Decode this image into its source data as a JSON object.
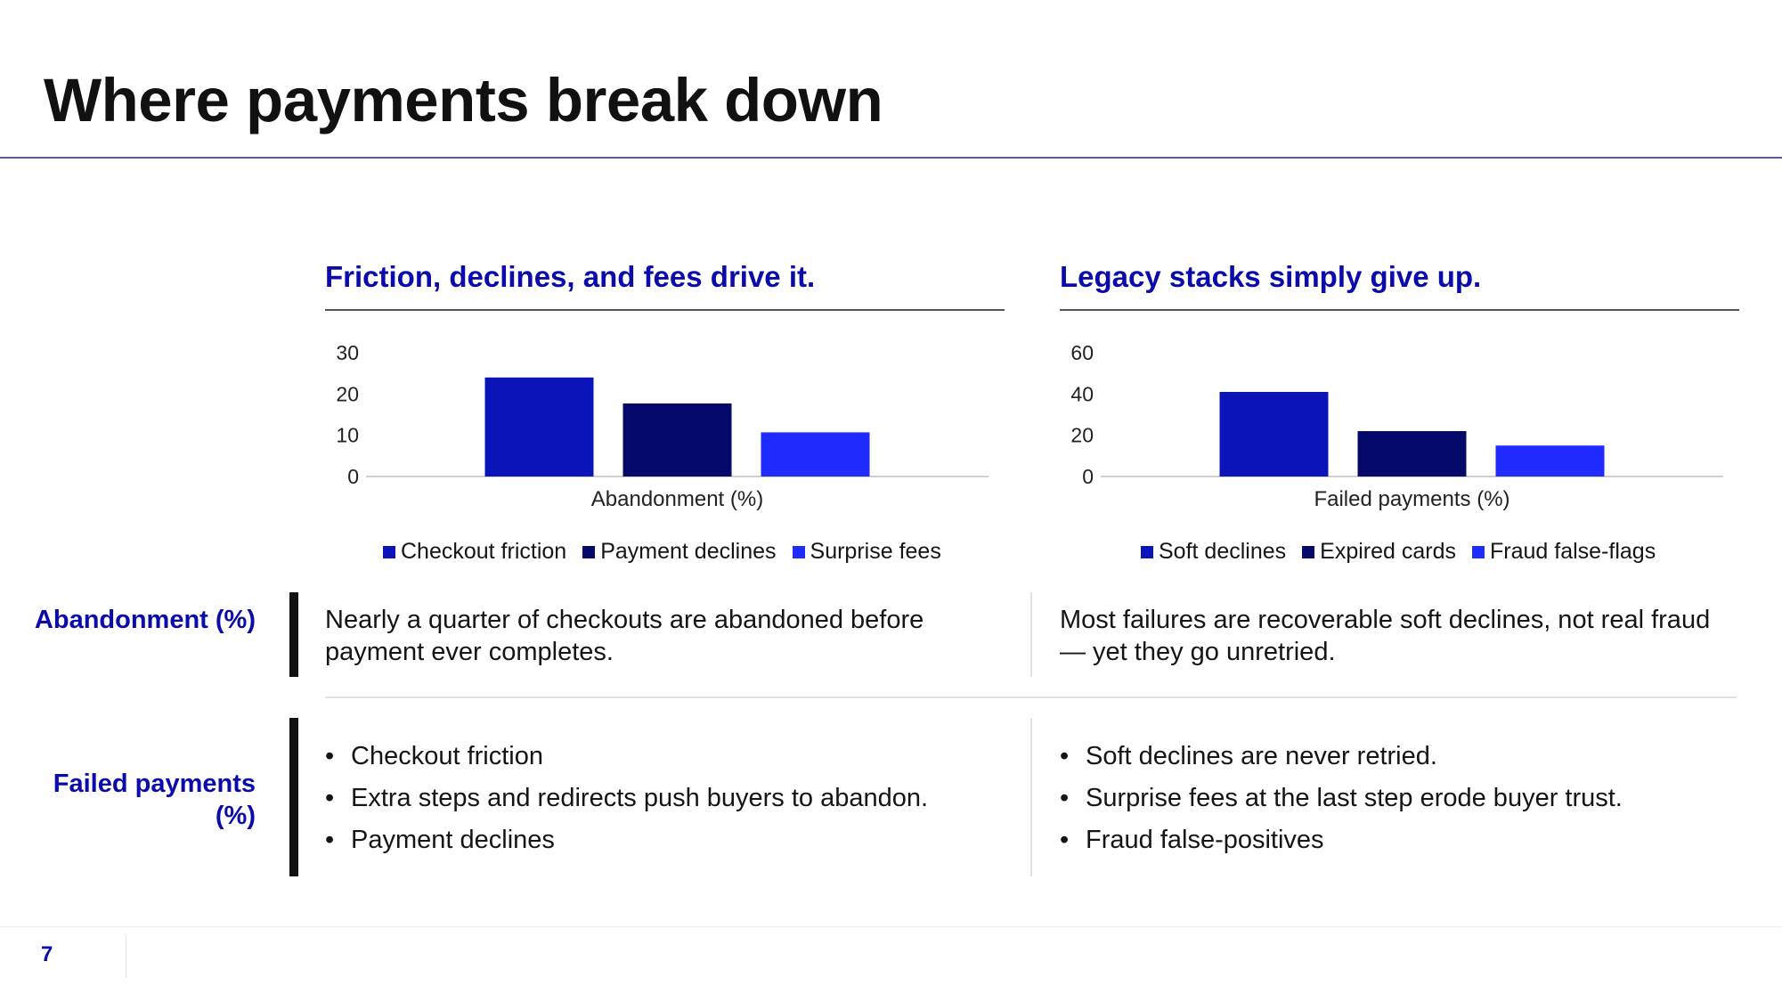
{
  "slide": {
    "title": "Where payments break down",
    "page_number": "7"
  },
  "left": {
    "heading": "Friction, declines, and fees drive it.",
    "summary": "Nearly a quarter of checkouts are abandoned before payment ever completes.",
    "bullets": [
      "Checkout friction",
      "Extra steps and redirects push buyers to abandon.",
      "Payment declines"
    ]
  },
  "right": {
    "heading": "Legacy stacks simply give up.",
    "summary": "Most failures are recoverable soft declines, not real fraud — yet they go unretried.",
    "bullets": [
      "Soft declines are never retried.",
      "Surprise fees at the last step erode buyer trust.",
      "Fraud false-positives"
    ]
  },
  "rows": {
    "row1_label": "Abandonment (%)",
    "row2_label": "Failed payments (%)"
  },
  "colors": {
    "series_1": "#0a14b8",
    "series_2": "#050a6a",
    "series_3": "#1f2bff",
    "accent_text": "#0b0bab"
  },
  "chart_data": [
    {
      "type": "bar",
      "categories": [
        "Abandonment (%)"
      ],
      "series": [
        {
          "name": "Checkout friction",
          "values": [
            24
          ]
        },
        {
          "name": "Payment declines",
          "values": [
            17.7
          ]
        },
        {
          "name": "Surprise fees",
          "values": [
            10.7
          ]
        }
      ],
      "xlabel": "Abandonment (%)",
      "ylim": [
        0,
        30
      ],
      "yticks": [
        0,
        10,
        20,
        30
      ],
      "grid": false,
      "legend": "bottom"
    },
    {
      "type": "bar",
      "categories": [
        "Failed payments (%)"
      ],
      "series": [
        {
          "name": "Soft declines",
          "values": [
            41
          ]
        },
        {
          "name": "Expired cards",
          "values": [
            22
          ]
        },
        {
          "name": "Fraud false-flags",
          "values": [
            15
          ]
        }
      ],
      "xlabel": "Failed payments (%)",
      "ylim": [
        0,
        60
      ],
      "yticks": [
        0,
        20,
        40,
        60
      ],
      "grid": false,
      "legend": "bottom"
    }
  ]
}
